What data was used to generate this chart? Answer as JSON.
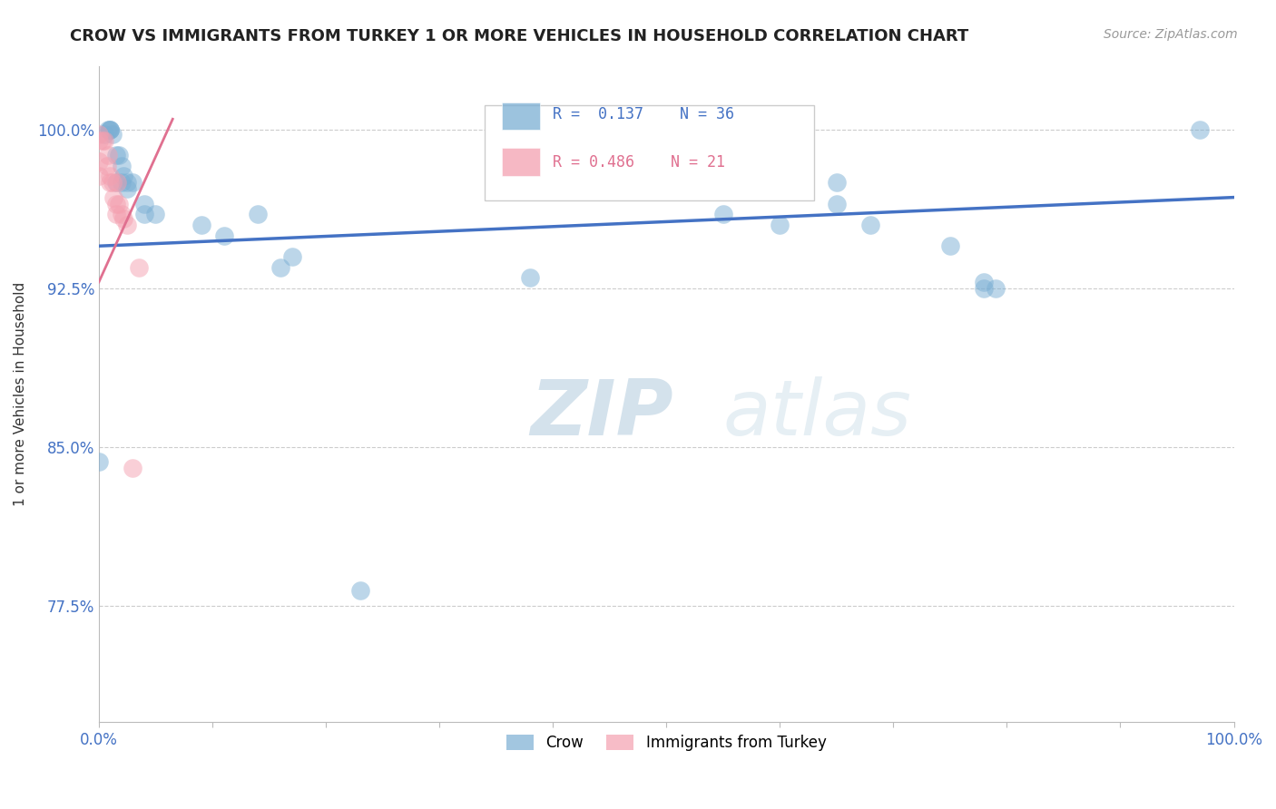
{
  "title": "CROW VS IMMIGRANTS FROM TURKEY 1 OR MORE VEHICLES IN HOUSEHOLD CORRELATION CHART",
  "source": "Source: ZipAtlas.com",
  "ylabel": "1 or more Vehicles in Household",
  "xlim": [
    0.0,
    1.0
  ],
  "ylim": [
    0.72,
    1.03
  ],
  "yticks": [
    0.775,
    0.85,
    0.925,
    1.0
  ],
  "ytick_labels": [
    "77.5%",
    "85.0%",
    "92.5%",
    "100.0%"
  ],
  "xticks": [
    0.0,
    0.1,
    0.2,
    0.3,
    0.4,
    0.5,
    0.6,
    0.7,
    0.8,
    0.9,
    1.0
  ],
  "xtick_labels": [
    "0.0%",
    "",
    "",
    "",
    "",
    "",
    "",
    "",
    "",
    "",
    "100.0%"
  ],
  "legend_entries": [
    "Crow",
    "Immigrants from Turkey"
  ],
  "crow_R": "0.137",
  "crow_N": "36",
  "turkey_R": "0.486",
  "turkey_N": "21",
  "crow_color": "#7bafd4",
  "turkey_color": "#f4a0b0",
  "crow_line_color": "#4472c4",
  "turkey_line_color": "#e07090",
  "watermark_zip": "ZIP",
  "watermark_atlas": "atlas",
  "crow_line": [
    [
      0.0,
      0.945
    ],
    [
      1.0,
      0.968
    ]
  ],
  "turkey_line": [
    [
      0.0,
      0.928
    ],
    [
      0.065,
      1.005
    ]
  ],
  "crow_points": [
    [
      0.0,
      0.843
    ],
    [
      0.005,
      0.998
    ],
    [
      0.008,
      1.0
    ],
    [
      0.01,
      1.0
    ],
    [
      0.01,
      1.0
    ],
    [
      0.01,
      1.0
    ],
    [
      0.012,
      0.998
    ],
    [
      0.015,
      0.975
    ],
    [
      0.015,
      0.988
    ],
    [
      0.018,
      0.988
    ],
    [
      0.02,
      0.983
    ],
    [
      0.02,
      0.975
    ],
    [
      0.022,
      0.978
    ],
    [
      0.025,
      0.975
    ],
    [
      0.025,
      0.972
    ],
    [
      0.03,
      0.975
    ],
    [
      0.04,
      0.96
    ],
    [
      0.04,
      0.965
    ],
    [
      0.05,
      0.96
    ],
    [
      0.09,
      0.955
    ],
    [
      0.11,
      0.95
    ],
    [
      0.14,
      0.96
    ],
    [
      0.16,
      0.935
    ],
    [
      0.17,
      0.94
    ],
    [
      0.38,
      0.93
    ],
    [
      0.55,
      0.96
    ],
    [
      0.6,
      0.955
    ],
    [
      0.65,
      0.975
    ],
    [
      0.65,
      0.965
    ],
    [
      0.68,
      0.955
    ],
    [
      0.75,
      0.945
    ],
    [
      0.78,
      0.925
    ],
    [
      0.78,
      0.928
    ],
    [
      0.79,
      0.925
    ],
    [
      0.97,
      1.0
    ],
    [
      0.23,
      0.782
    ]
  ],
  "turkey_points": [
    [
      0.0,
      0.998
    ],
    [
      0.0,
      0.995
    ],
    [
      0.0,
      0.985
    ],
    [
      0.0,
      0.978
    ],
    [
      0.003,
      0.995
    ],
    [
      0.005,
      0.995
    ],
    [
      0.007,
      0.983
    ],
    [
      0.008,
      0.988
    ],
    [
      0.01,
      0.978
    ],
    [
      0.01,
      0.975
    ],
    [
      0.012,
      0.975
    ],
    [
      0.013,
      0.968
    ],
    [
      0.015,
      0.965
    ],
    [
      0.015,
      0.96
    ],
    [
      0.016,
      0.975
    ],
    [
      0.018,
      0.965
    ],
    [
      0.02,
      0.96
    ],
    [
      0.022,
      0.958
    ],
    [
      0.025,
      0.955
    ],
    [
      0.03,
      0.84
    ],
    [
      0.035,
      0.935
    ]
  ]
}
